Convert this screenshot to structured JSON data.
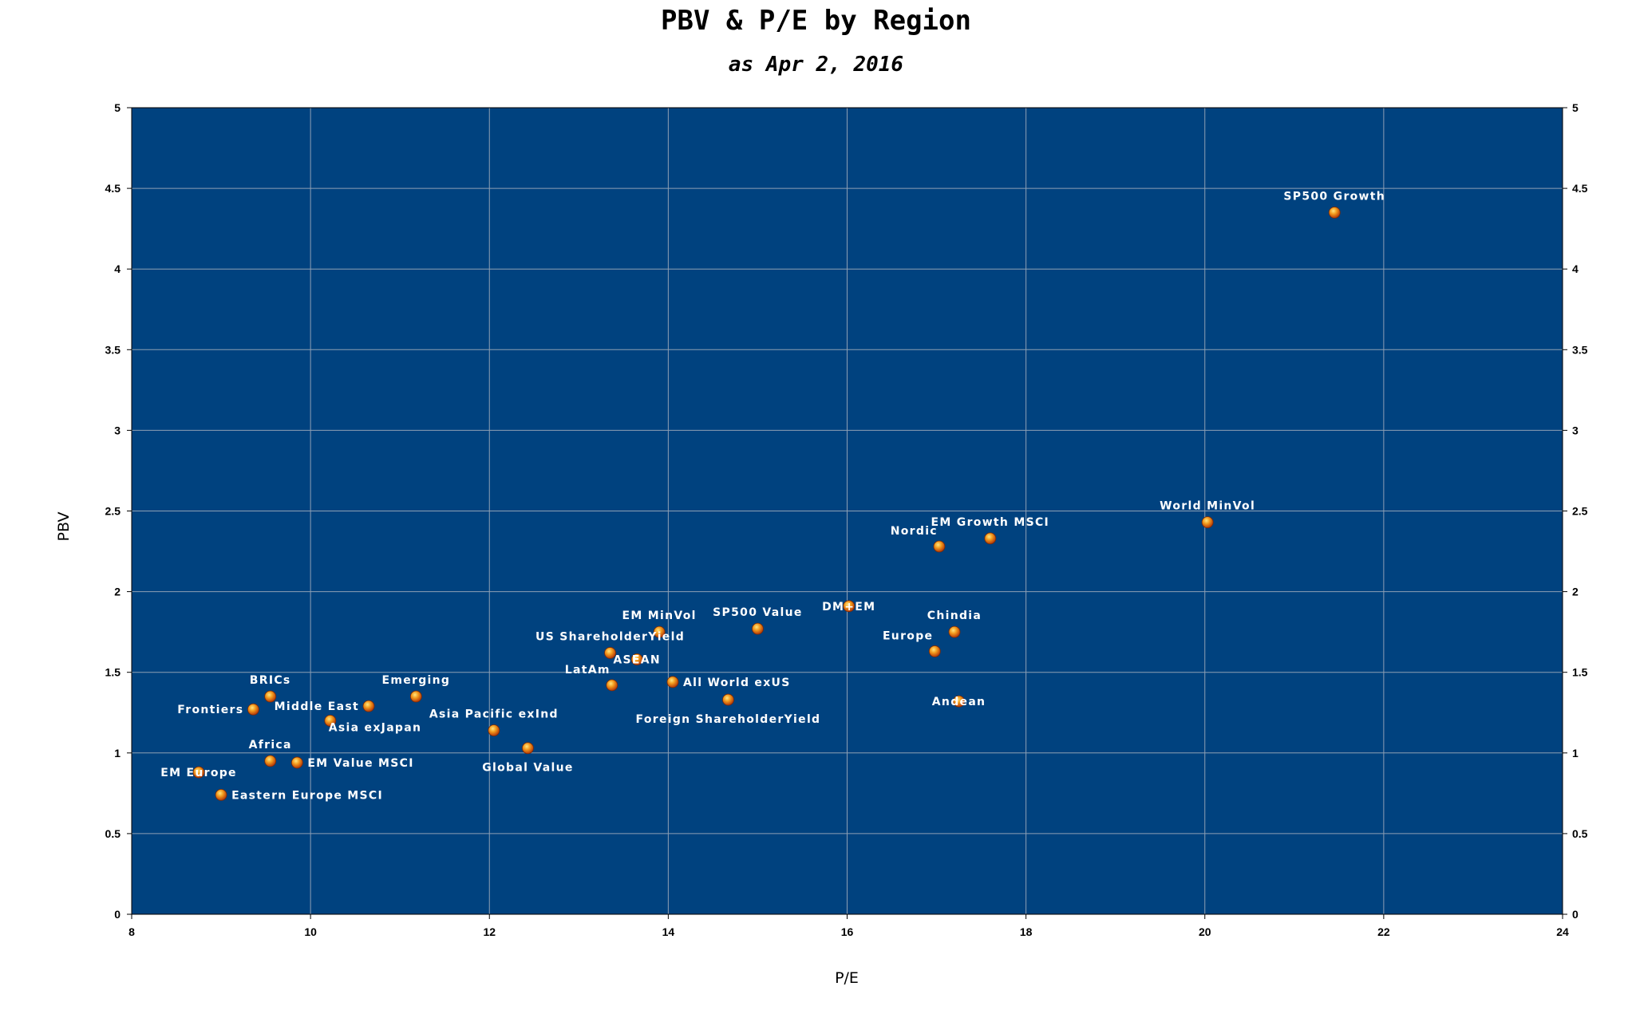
{
  "chart_data": {
    "type": "scatter",
    "title": "PBV & P/E by Region",
    "subtitle": "as Apr 2, 2016",
    "xlabel": "P/E",
    "ylabel": "PBV",
    "xlim": [
      8,
      24
    ],
    "ylim": [
      0,
      5
    ],
    "xticks": [
      8,
      10,
      12,
      14,
      16,
      18,
      20,
      22,
      24
    ],
    "yticks": [
      0,
      0.5,
      1,
      1.5,
      2,
      2.5,
      3,
      3.5,
      4,
      4.5,
      5
    ],
    "ytick_labels": [
      "0",
      "0.5",
      "1",
      "1.5",
      "2",
      "2.5",
      "3",
      "3.5",
      "4",
      "4.5",
      "5"
    ],
    "grid": true,
    "secondary_y_axis": true,
    "colors": {
      "plot_background": "#00427F",
      "grid": "#8E9FB4",
      "marker": "#E8740F",
      "label": "#FFFFFF"
    },
    "points": [
      {
        "name": "SP500 Growth",
        "x": 21.45,
        "y": 4.35,
        "label_pos": "above"
      },
      {
        "name": "World MinVol",
        "x": 20.03,
        "y": 2.43,
        "label_pos": "above"
      },
      {
        "name": "EM Growth MSCI",
        "x": 17.6,
        "y": 2.33,
        "label_pos": "above"
      },
      {
        "name": "Nordic",
        "x": 17.03,
        "y": 2.28,
        "label_pos": "above-left"
      },
      {
        "name": "DM+EM",
        "x": 16.02,
        "y": 1.91,
        "label_pos": "center"
      },
      {
        "name": "Chindia",
        "x": 17.2,
        "y": 1.75,
        "label_pos": "above"
      },
      {
        "name": "Europe",
        "x": 16.98,
        "y": 1.63,
        "label_pos": "above-left"
      },
      {
        "name": "Andean",
        "x": 17.25,
        "y": 1.32,
        "label_pos": "center"
      },
      {
        "name": "SP500 Value",
        "x": 15.0,
        "y": 1.77,
        "label_pos": "above"
      },
      {
        "name": "EM MinVol",
        "x": 13.9,
        "y": 1.75,
        "label_pos": "above"
      },
      {
        "name": "US ShareholderYield",
        "x": 13.35,
        "y": 1.62,
        "label_pos": "above"
      },
      {
        "name": "ASEAN",
        "x": 13.65,
        "y": 1.58,
        "label_pos": "center"
      },
      {
        "name": "LatAm",
        "x": 13.37,
        "y": 1.42,
        "label_pos": "above-left"
      },
      {
        "name": "All World exUS",
        "x": 14.05,
        "y": 1.44,
        "label_pos": "right"
      },
      {
        "name": "Foreign ShareholderYield",
        "x": 14.67,
        "y": 1.33,
        "label_pos": "below"
      },
      {
        "name": "Asia Pacific exInd",
        "x": 12.05,
        "y": 1.14,
        "label_pos": "above"
      },
      {
        "name": "Global Value",
        "x": 12.43,
        "y": 1.03,
        "label_pos": "below"
      },
      {
        "name": "Emerging",
        "x": 11.18,
        "y": 1.35,
        "label_pos": "above"
      },
      {
        "name": "Middle East",
        "x": 10.65,
        "y": 1.29,
        "label_pos": "left"
      },
      {
        "name": "Asia exJapan",
        "x": 10.22,
        "y": 1.2,
        "label_pos": "below-right"
      },
      {
        "name": "BRICs",
        "x": 9.55,
        "y": 1.35,
        "label_pos": "above"
      },
      {
        "name": "Frontiers",
        "x": 9.36,
        "y": 1.27,
        "label_pos": "left"
      },
      {
        "name": "Africa",
        "x": 9.55,
        "y": 0.95,
        "label_pos": "above"
      },
      {
        "name": "EM Value MSCI",
        "x": 9.85,
        "y": 0.94,
        "label_pos": "right"
      },
      {
        "name": "EM Europe",
        "x": 8.75,
        "y": 0.88,
        "label_pos": "center"
      },
      {
        "name": "Eastern Europe MSCI",
        "x": 9.0,
        "y": 0.74,
        "label_pos": "right"
      }
    ]
  }
}
